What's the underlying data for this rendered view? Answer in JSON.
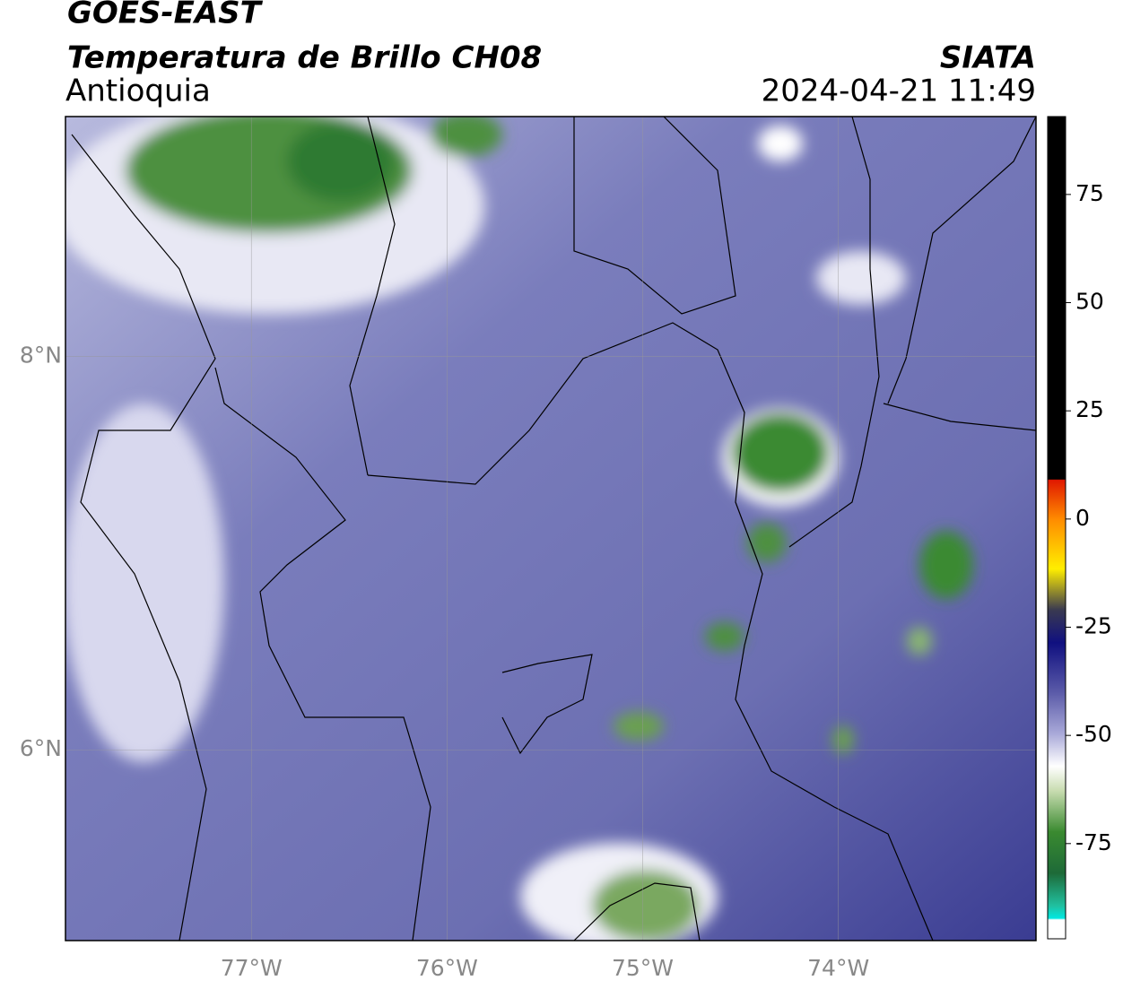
{
  "header": {
    "satellite": "GOES-EAST",
    "product": "Temperatura de Brillo CH08",
    "region": "Antioquia",
    "source": "SIATA",
    "timestamp": "2024-04-21 11:49"
  },
  "map": {
    "lonlim": [
      -77.95,
      -72.99
    ],
    "latlim": [
      5.03,
      9.22
    ],
    "lonticks": [
      {
        "value": -77,
        "label": "77°W"
      },
      {
        "value": -76,
        "label": "76°W"
      },
      {
        "value": -75,
        "label": "75°W"
      },
      {
        "value": -74,
        "label": "74°W"
      }
    ],
    "latticks": [
      {
        "value": 8,
        "label": "8°N"
      },
      {
        "value": 6,
        "label": "6°N"
      }
    ]
  },
  "colorbar": {
    "range": [
      -97,
      93
    ],
    "ticks": [
      75,
      50,
      25,
      0,
      -25,
      -50,
      -75
    ]
  }
}
